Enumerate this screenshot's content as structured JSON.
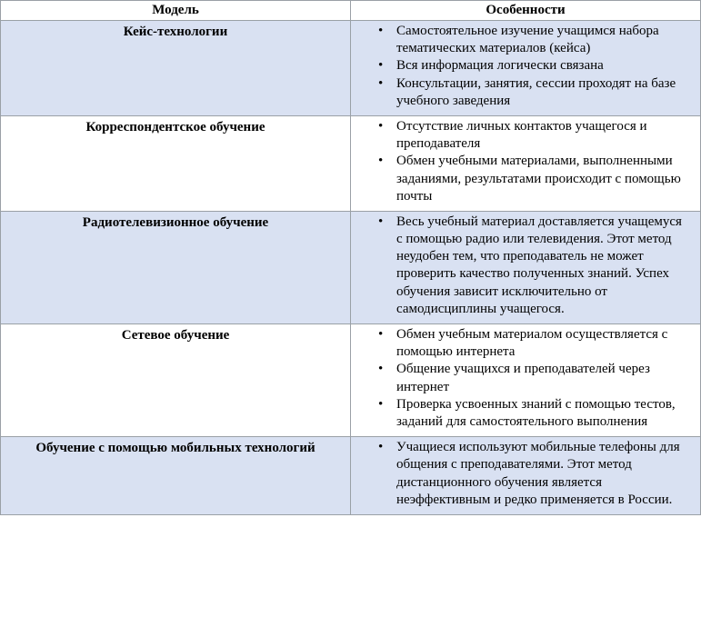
{
  "table": {
    "type": "table",
    "columns": [
      {
        "label": "Модель",
        "width_pct": 50,
        "align": "center",
        "font_weight": "bold"
      },
      {
        "label": "Особенности",
        "width_pct": 50,
        "align": "center",
        "font_weight": "bold"
      }
    ],
    "header_border_color": "#4472c4",
    "cell_border_color": "#9aa0a6",
    "row_colors": {
      "odd": "#d9e1f2",
      "even": "#ffffff"
    },
    "text_color": "#000000",
    "font_family": "Times New Roman",
    "title_fontsize": 15,
    "body_fontsize": 15,
    "bullet_glyph": "•",
    "rows": [
      {
        "model": "Кейс-технологии",
        "features": [
          "Самостоятельное изучение учащимся набора тематических материалов (кейса)",
          "Вся информация логически связана",
          "Консультации, занятия, сессии проходят на базе учебного заведения"
        ]
      },
      {
        "model": "Корреспондентское обучение",
        "features": [
          "Отсутствие личных контактов учащегося и преподавателя",
          "Обмен учебными материалами, выполненными заданиями, результатами происходит с помощью почты"
        ]
      },
      {
        "model": "Радиотелевизионное обучение",
        "features": [
          "Весь учебный материал доставляется учащемуся с помощью радио или телевидения. Этот метод неудобен тем, что преподаватель не может проверить качество полученных знаний. Успех обучения зависит исключительно от самодисциплины учащегося."
        ]
      },
      {
        "model": "Сетевое обучение",
        "features": [
          "Обмен учебным материалом осуществляется с помощью интернета",
          "Общение учащихся и преподавателей через интернет",
          "Проверка усвоенных знаний с помощью тестов, заданий для самостоятельного выполнения"
        ]
      },
      {
        "model": "Обучение с помощью мобильных технологий",
        "features": [
          "Учащиеся используют мобильные телефоны для общения с преподавателями. Этот метод дистанционного обучения является неэффективным и редко применяется в России."
        ]
      }
    ]
  }
}
